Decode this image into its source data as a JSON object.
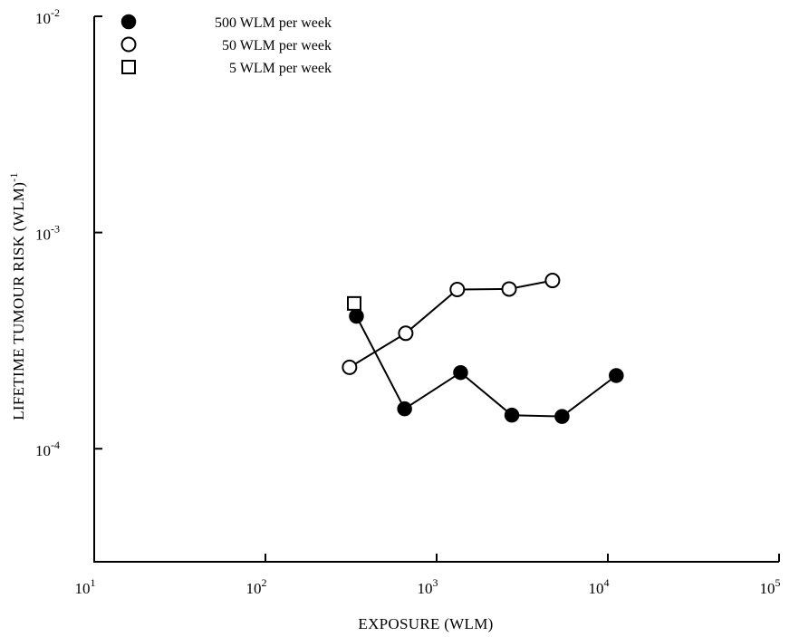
{
  "chart_data": {
    "type": "line",
    "xlabel": "EXPOSURE (WLM)",
    "ylabel_main": "LIFETIME TUMOUR RISK (WLM)",
    "ylabel_sup": "-1",
    "x_scale": "log",
    "y_scale": "log",
    "xlim": [
      10,
      100000
    ],
    "ylim": [
      3e-05,
      0.01
    ],
    "x_ticks": [
      {
        "value": 10,
        "base": "10",
        "exp": "1"
      },
      {
        "value": 100,
        "base": "10",
        "exp": "2"
      },
      {
        "value": 1000,
        "base": "10",
        "exp": "3"
      },
      {
        "value": 10000,
        "base": "10",
        "exp": "4"
      },
      {
        "value": 100000,
        "base": "10",
        "exp": "5"
      }
    ],
    "y_ticks": [
      {
        "value": 0.0001,
        "base": "10",
        "exp": "-4"
      },
      {
        "value": 0.001,
        "base": "10",
        "exp": "-3"
      },
      {
        "value": 0.01,
        "base": "10",
        "exp": "-2"
      }
    ],
    "grid": false,
    "legend_position": "top-left",
    "series": [
      {
        "name": "500 WLM per week",
        "marker": "filled-circle",
        "connected": true,
        "points": [
          {
            "x": 340,
            "y": 0.00041
          },
          {
            "x": 650,
            "y": 0.000153
          },
          {
            "x": 1380,
            "y": 0.000225
          },
          {
            "x": 2750,
            "y": 0.000143
          },
          {
            "x": 5400,
            "y": 0.000141
          },
          {
            "x": 11200,
            "y": 0.000218
          }
        ]
      },
      {
        "name": "50 WLM per week",
        "marker": "open-circle",
        "connected": true,
        "points": [
          {
            "x": 310,
            "y": 0.000238
          },
          {
            "x": 660,
            "y": 0.000342
          },
          {
            "x": 1320,
            "y": 0.000545
          },
          {
            "x": 2650,
            "y": 0.000548
          },
          {
            "x": 4750,
            "y": 0.0006
          }
        ]
      },
      {
        "name": "5 WLM per week",
        "marker": "open-square",
        "connected": false,
        "points": [
          {
            "x": 330,
            "y": 0.00047
          }
        ]
      }
    ]
  }
}
